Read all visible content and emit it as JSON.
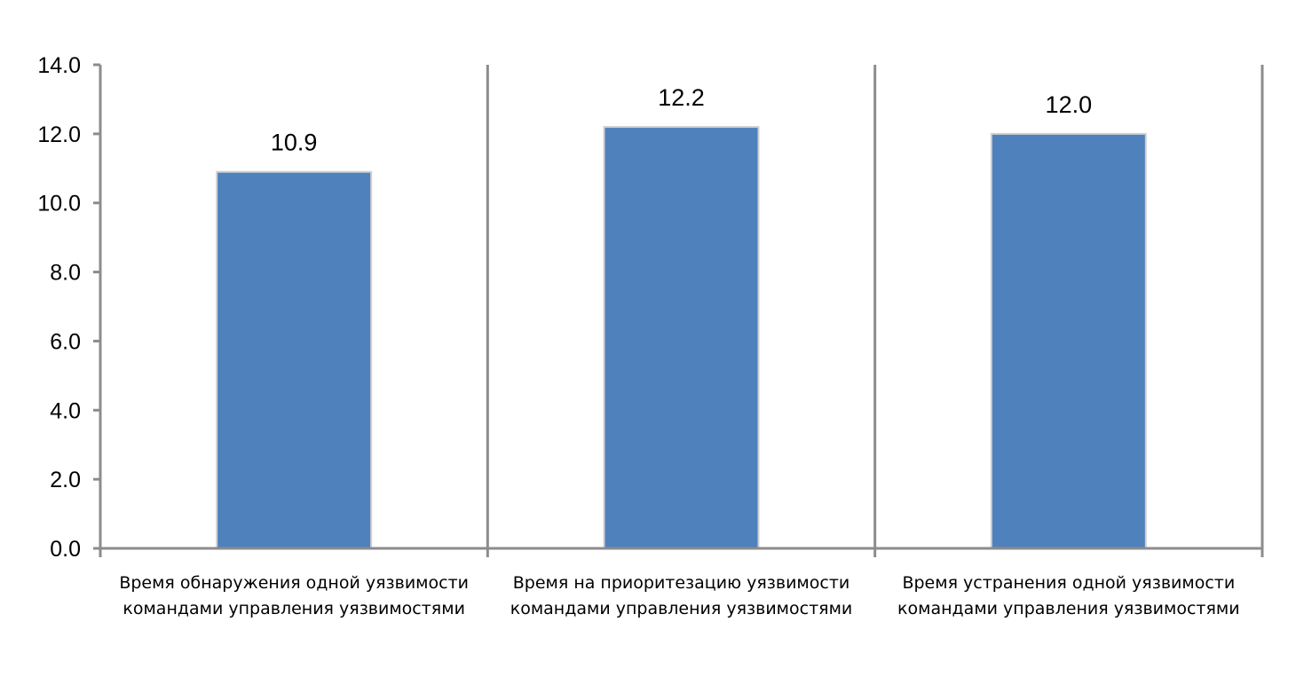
{
  "chart_data": {
    "type": "bar",
    "categories": [
      [
        "Время обнаружения одной уязвимости",
        "командами управления уязвимостями"
      ],
      [
        "Время на приоритезацию уязвимости",
        "командами управления уязвимостями"
      ],
      [
        "Время устранения одной уязвимости",
        "командами управления уязвимостями"
      ]
    ],
    "values": [
      10.9,
      12.2,
      12.0
    ],
    "data_labels": [
      "10.9",
      "12.2",
      "12.0"
    ],
    "ylim": [
      0,
      14
    ],
    "yticks": [
      "0.0",
      "2.0",
      "4.0",
      "6.0",
      "8.0",
      "10.0",
      "12.0",
      "14.0"
    ],
    "ytick_values": [
      0,
      2,
      4,
      6,
      8,
      10,
      12,
      14
    ],
    "title": "",
    "xlabel": "",
    "ylabel": "",
    "grid": false,
    "legend": "none",
    "bar_color": "#4f81bd",
    "axis_color": "#8c8c8c"
  }
}
